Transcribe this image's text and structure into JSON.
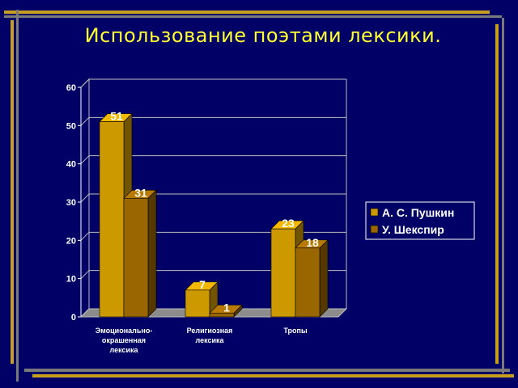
{
  "slide": {
    "title": "Использование поэтами лексики.",
    "colors": {
      "background": "#000066",
      "title": "#ffff33",
      "accent_gold": "#c8a020",
      "accent_gray": "#808080"
    }
  },
  "chart_data": {
    "type": "bar",
    "style": "3d-clustered-column",
    "categories": [
      [
        "Эмоционально-",
        "окрашенная",
        "лексика"
      ],
      [
        "Религиозная",
        "лексика"
      ],
      [
        "Тропы"
      ]
    ],
    "series": [
      {
        "name": "А. С. Пушкин",
        "values": [
          51,
          7,
          23
        ],
        "color": "#cc9900"
      },
      {
        "name": "У. Шекспир",
        "values": [
          31,
          1,
          18
        ],
        "color": "#996600"
      }
    ],
    "yticks": [
      0,
      10,
      20,
      30,
      40,
      50,
      60
    ],
    "ylim": [
      0,
      60
    ],
    "grid": true,
    "legend_position": "right",
    "data_labels": true
  }
}
